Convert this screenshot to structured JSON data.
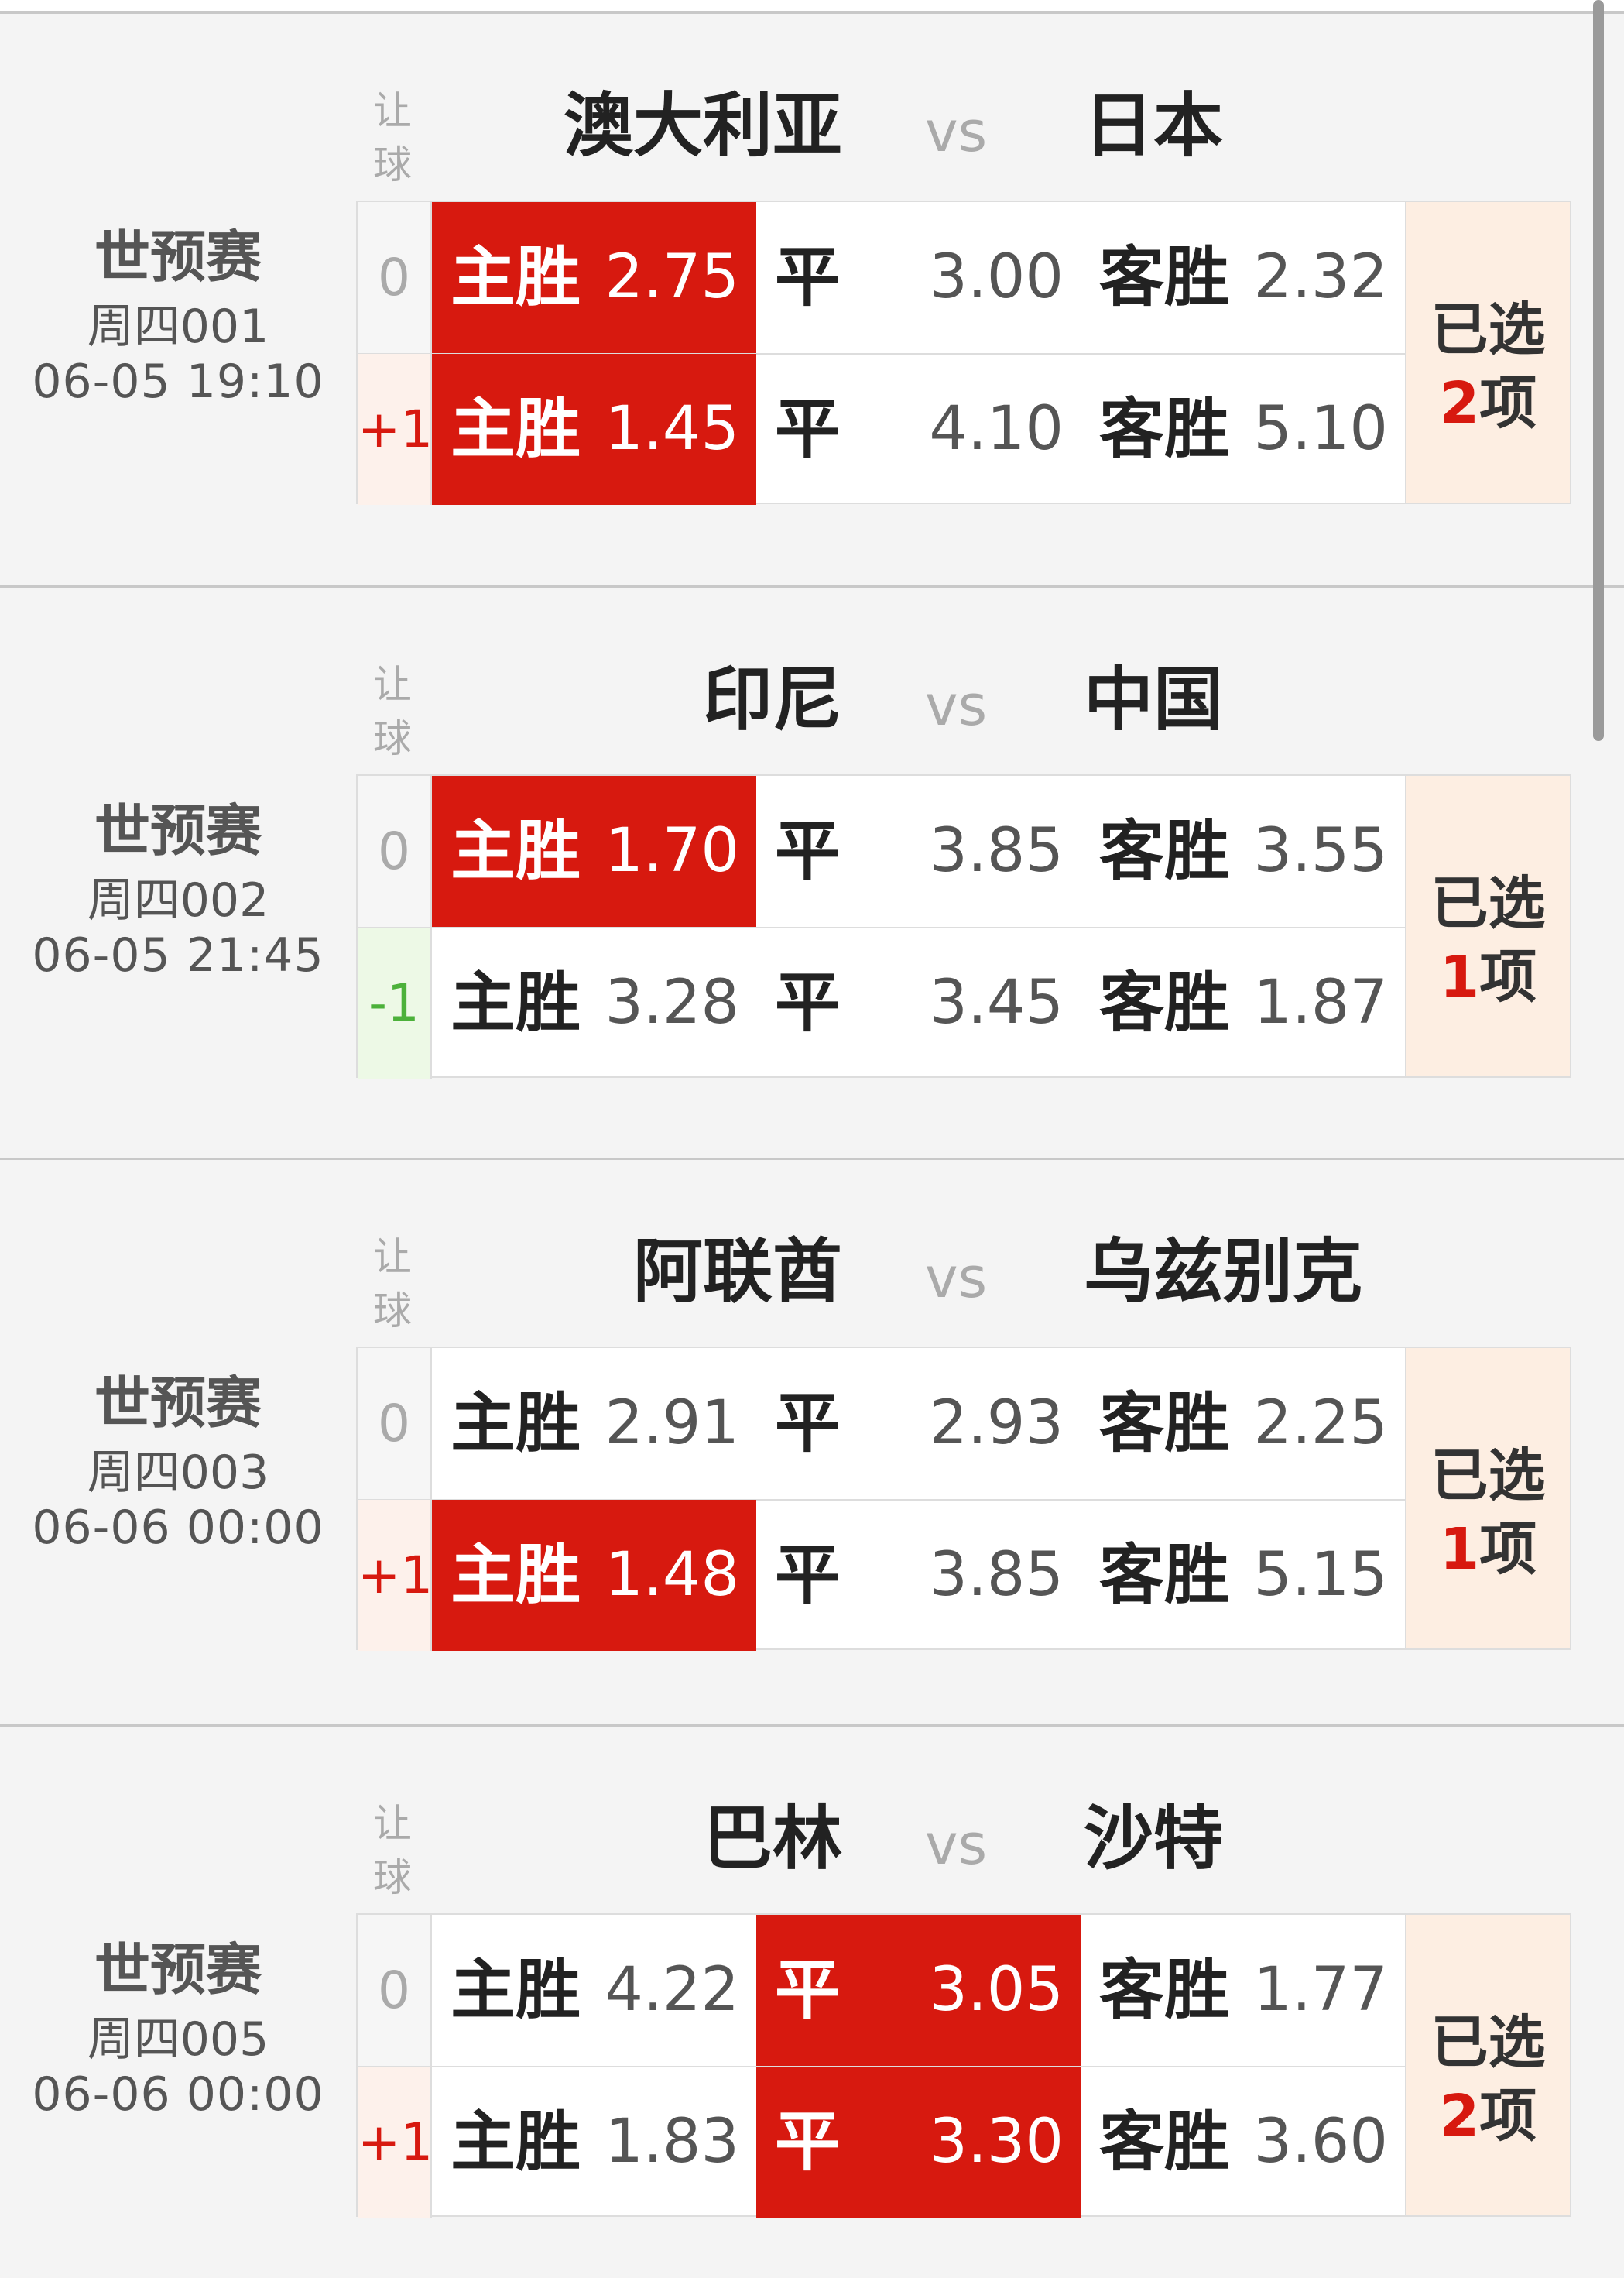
{
  "handicap_label": [
    "让",
    "球"
  ],
  "vs_label": "vs",
  "home_label": "主胜",
  "draw_label": "平",
  "away_label": "客胜",
  "selected_prefix": "已选",
  "selected_suffix": "项",
  "colors": {
    "selected": "#d7190f",
    "plus": "#d7190f",
    "minus": "#4cb13a",
    "selected_col_bg": "#fdeee2"
  },
  "matches": [
    {
      "league": "世预赛",
      "code": "周四001",
      "time": "06-05 19:10",
      "home": "澳大利亚",
      "away": "日本",
      "selected_count": "2",
      "rows": [
        {
          "handicap": "0",
          "home_odds": "2.75",
          "draw_odds": "3.00",
          "away_odds": "2.32",
          "selected": [
            "home"
          ]
        },
        {
          "handicap": "+1",
          "home_odds": "1.45",
          "draw_odds": "4.10",
          "away_odds": "5.10",
          "selected": [
            "home"
          ]
        }
      ]
    },
    {
      "league": "世预赛",
      "code": "周四002",
      "time": "06-05 21:45",
      "home": "印尼",
      "away": "中国",
      "selected_count": "1",
      "rows": [
        {
          "handicap": "0",
          "home_odds": "1.70",
          "draw_odds": "3.85",
          "away_odds": "3.55",
          "selected": [
            "home"
          ]
        },
        {
          "handicap": "-1",
          "home_odds": "3.28",
          "draw_odds": "3.45",
          "away_odds": "1.87",
          "selected": []
        }
      ]
    },
    {
      "league": "世预赛",
      "code": "周四003",
      "time": "06-06 00:00",
      "home": "阿联酋",
      "away": "乌兹别克",
      "selected_count": "1",
      "rows": [
        {
          "handicap": "0",
          "home_odds": "2.91",
          "draw_odds": "2.93",
          "away_odds": "2.25",
          "selected": []
        },
        {
          "handicap": "+1",
          "home_odds": "1.48",
          "draw_odds": "3.85",
          "away_odds": "5.15",
          "selected": [
            "home"
          ]
        }
      ]
    },
    {
      "league": "世预赛",
      "code": "周四005",
      "time": "06-06 00:00",
      "home": "巴林",
      "away": "沙特",
      "selected_count": "2",
      "rows": [
        {
          "handicap": "0",
          "home_odds": "4.22",
          "draw_odds": "3.05",
          "away_odds": "1.77",
          "selected": [
            "draw"
          ]
        },
        {
          "handicap": "+1",
          "home_odds": "1.83",
          "draw_odds": "3.30",
          "away_odds": "3.60",
          "selected": [
            "draw"
          ]
        }
      ]
    }
  ]
}
